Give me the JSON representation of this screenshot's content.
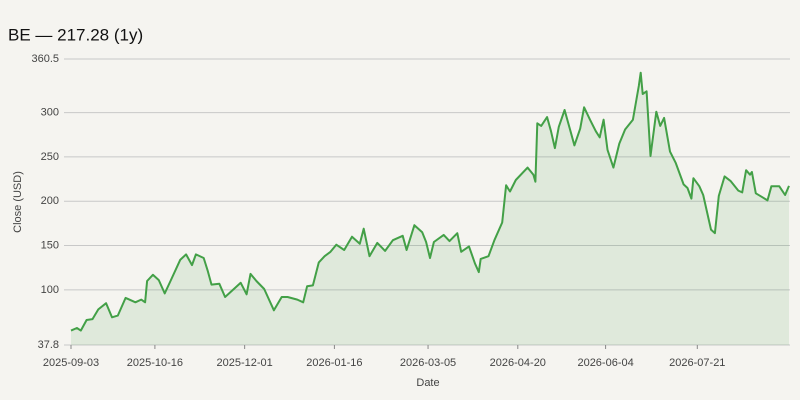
{
  "chart_data": {
    "type": "area",
    "title": "BE — 217.28 (1y)",
    "x_label": "Date",
    "y_label": "Close (USD)",
    "color": "#43a047",
    "grid": true,
    "x": [
      "2025-09-03",
      "2025-09-06",
      "2025-09-08",
      "2025-09-11",
      "2025-09-14",
      "2025-09-17",
      "2025-09-21",
      "2025-09-24",
      "2025-09-27",
      "2025-10-01",
      "2025-10-06",
      "2025-10-09",
      "2025-10-11",
      "2025-10-12",
      "2025-10-15",
      "2025-10-18",
      "2025-10-21",
      "2025-10-24",
      "2025-10-29",
      "2025-11-01",
      "2025-11-04",
      "2025-11-06",
      "2025-11-10",
      "2025-11-12",
      "2025-11-14",
      "2025-11-18",
      "2025-11-21",
      "2025-11-25",
      "2025-11-29",
      "2025-12-02",
      "2025-12-04",
      "2025-12-07",
      "2025-12-11",
      "2025-12-16",
      "2025-12-20",
      "2025-12-23",
      "2025-12-28",
      "2025-12-31",
      "2026-01-02",
      "2026-01-05",
      "2026-01-08",
      "2026-01-11",
      "2026-01-14",
      "2026-01-17",
      "2026-01-21",
      "2026-01-25",
      "2026-01-29",
      "2026-01-31",
      "2026-02-03",
      "2026-02-07",
      "2026-02-11",
      "2026-02-15",
      "2026-02-20",
      "2026-02-22",
      "2026-02-26",
      "2026-03-02",
      "2026-03-04",
      "2026-03-06",
      "2026-03-08",
      "2026-03-13",
      "2026-03-16",
      "2026-03-20",
      "2026-03-22",
      "2026-03-26",
      "2026-03-29",
      "2026-03-31",
      "2026-04-01",
      "2026-04-05",
      "2026-04-08",
      "2026-04-12",
      "2026-04-14",
      "2026-04-16",
      "2026-04-19",
      "2026-04-25",
      "2026-04-28",
      "2026-04-29",
      "2026-04-30",
      "2026-05-02",
      "2026-05-05",
      "2026-05-07",
      "2026-05-09",
      "2026-05-11",
      "2026-05-14",
      "2026-05-17",
      "2026-05-19",
      "2026-05-22",
      "2026-05-24",
      "2026-05-27",
      "2026-05-30",
      "2026-06-01",
      "2026-06-03",
      "2026-06-05",
      "2026-06-08",
      "2026-06-11",
      "2026-06-14",
      "2026-06-18",
      "2026-06-21",
      "2026-06-22",
      "2026-06-23",
      "2026-06-25",
      "2026-06-27",
      "2026-06-30",
      "2026-07-02",
      "2026-07-04",
      "2026-07-07",
      "2026-07-10",
      "2026-07-14",
      "2026-07-16",
      "2026-07-18",
      "2026-07-19",
      "2026-07-22",
      "2026-07-24",
      "2026-07-28",
      "2026-07-30",
      "2026-08-01",
      "2026-08-04",
      "2026-08-07",
      "2026-08-11",
      "2026-08-13",
      "2026-08-15",
      "2026-08-17",
      "2026-08-18",
      "2026-08-20",
      "2026-08-23",
      "2026-08-26",
      "2026-08-28",
      "2026-09-01",
      "2026-09-04",
      "2026-09-06"
    ],
    "values": [
      54,
      57,
      54,
      66,
      67,
      78,
      85,
      69,
      71,
      91,
      86,
      89,
      86,
      110,
      117,
      111,
      96,
      110,
      134,
      140,
      128,
      140,
      136,
      122,
      106,
      107,
      92,
      100,
      108,
      95,
      118,
      110,
      101,
      77,
      92,
      92,
      89,
      86,
      104,
      105,
      131,
      138,
      143,
      151,
      145,
      160,
      152,
      169,
      138,
      153,
      144,
      156,
      161,
      145,
      173,
      165,
      154,
      136,
      154,
      162,
      155,
      164,
      143,
      149,
      130,
      120,
      135,
      138,
      156,
      176,
      218,
      211,
      224,
      238,
      230,
      222,
      288,
      285,
      295,
      279,
      260,
      284,
      303,
      279,
      263,
      282,
      306,
      292,
      279,
      272,
      292,
      258,
      238,
      265,
      281,
      292,
      330,
      345,
      321,
      324,
      251,
      301,
      285,
      294,
      256,
      243,
      219,
      215,
      203,
      226,
      217,
      207,
      168,
      164,
      206,
      228,
      223,
      212,
      210,
      235,
      230,
      233,
      209,
      205,
      201,
      217,
      217,
      207,
      217.28
    ],
    "xlim": [
      "2025-09-03",
      "2026-09-06"
    ],
    "xticks": [
      "2025-09-03",
      "2025-10-16",
      "2025-12-01",
      "2026-01-16",
      "2026-03-05",
      "2026-04-20",
      "2026-06-04",
      "2026-07-21"
    ],
    "ylim": [
      37.8,
      360.5
    ],
    "yticks": [
      37.8,
      100,
      150,
      200,
      250,
      300,
      360.5
    ]
  }
}
